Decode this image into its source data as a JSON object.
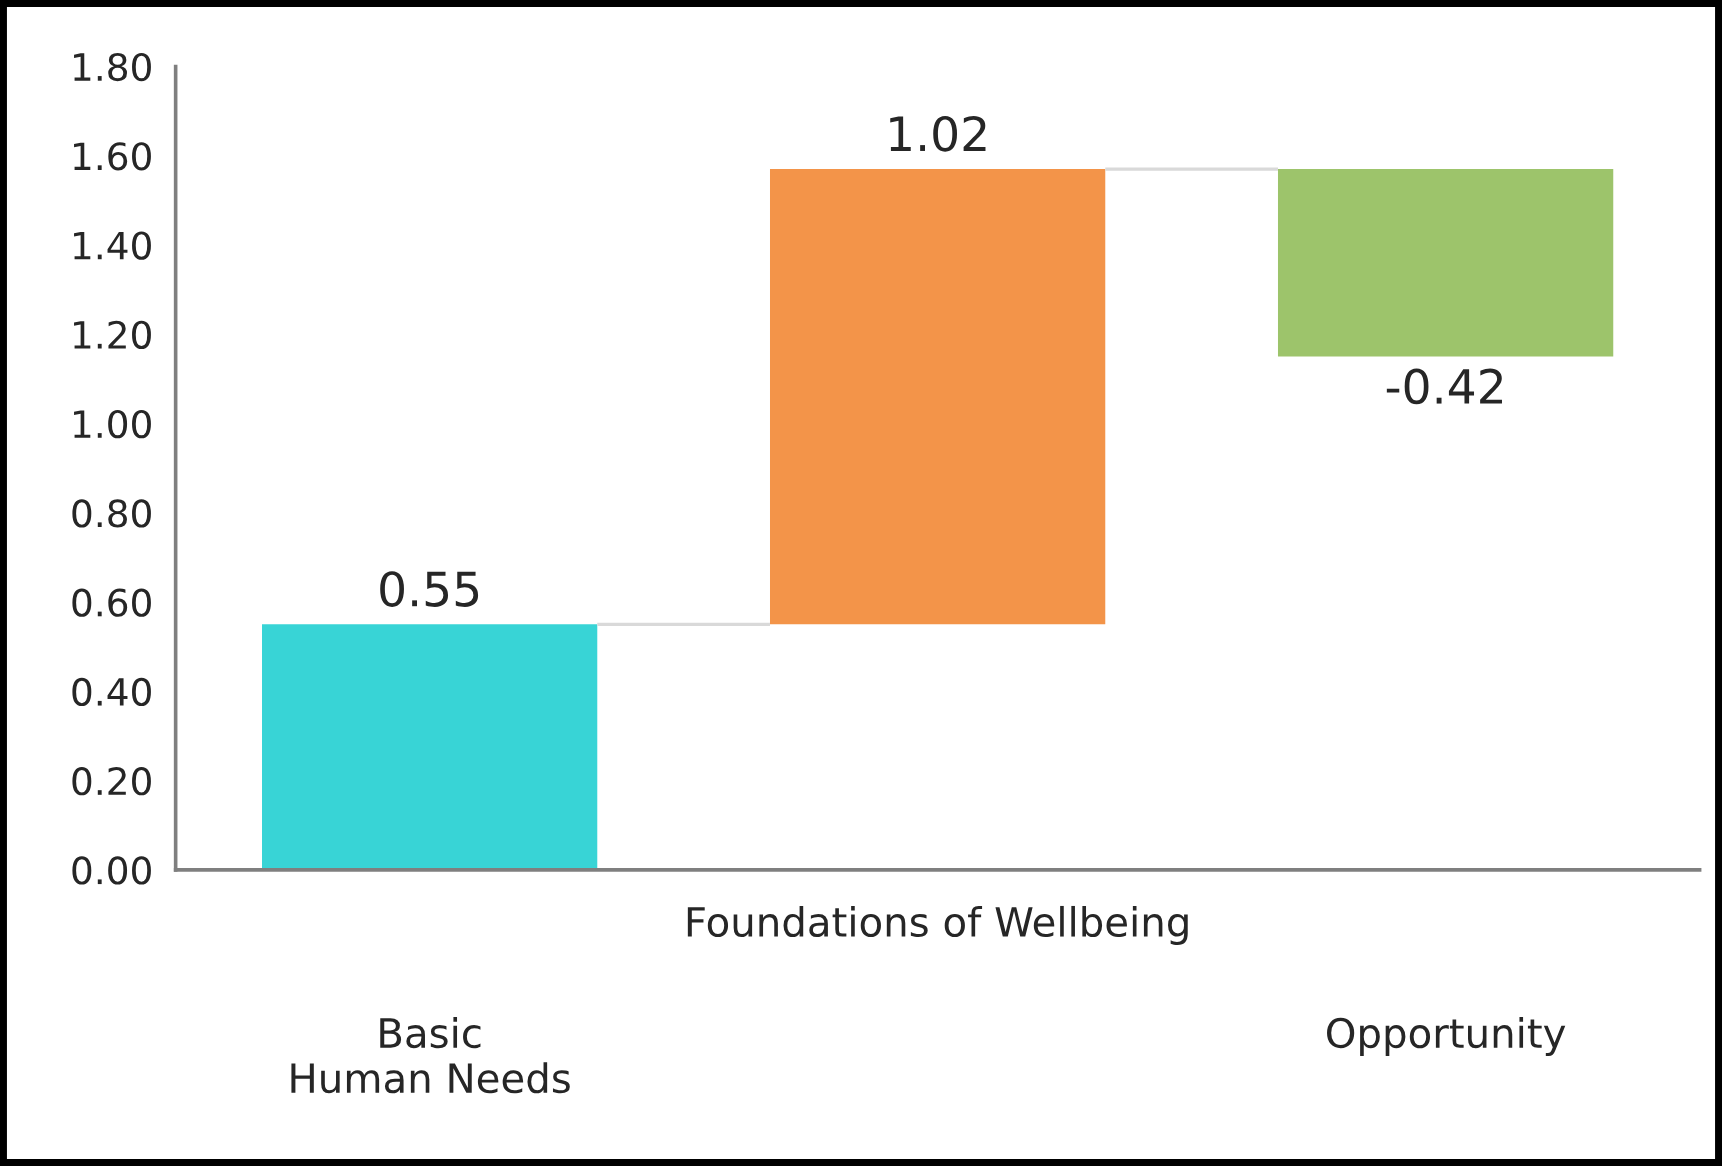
{
  "chart_data": {
    "type": "bar",
    "categories": [
      "Basic\nHuman Needs",
      "Foundations of Wellbeing",
      "Opportunity"
    ],
    "values": [
      0.55,
      1.02,
      -0.42
    ],
    "base": [
      0,
      0.55,
      1.57
    ],
    "colors": [
      "#38d4d6",
      "#f39449",
      "#9dc46b"
    ],
    "ylim": [
      0,
      1.8
    ],
    "yticks": [
      {
        "value": 0,
        "label": "0.00"
      },
      {
        "value": 0.2,
        "label": "0.20"
      },
      {
        "value": 0.4,
        "label": "0.40"
      },
      {
        "value": 0.6,
        "label": "0.60"
      },
      {
        "value": 0.8,
        "label": "0.80"
      },
      {
        "value": 1.0,
        "label": "1.00"
      },
      {
        "value": 1.2,
        "label": "1.20"
      },
      {
        "value": 1.4,
        "label": "1.40"
      },
      {
        "value": 1.6,
        "label": "1.60"
      },
      {
        "value": 1.8,
        "label": "1.80"
      }
    ],
    "data_labels": true
  }
}
